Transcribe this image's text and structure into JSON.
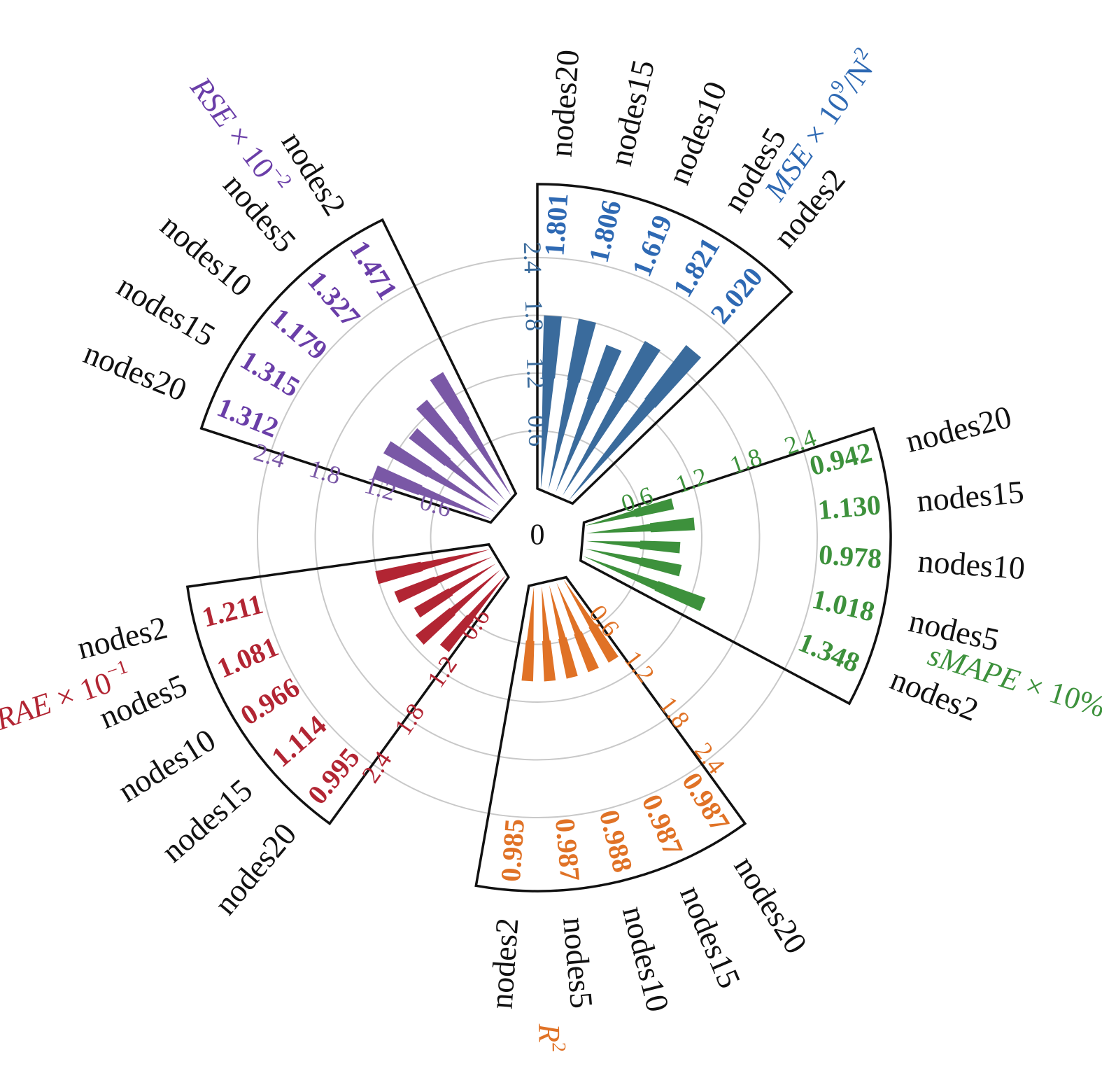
{
  "chart_data": {
    "type": "bar",
    "polar": true,
    "center_label": "0",
    "radial_ticks": [
      "0.6",
      "1.2",
      "1.8",
      "2.4"
    ],
    "radial_tick_values": [
      0.6,
      1.2,
      1.8,
      2.4
    ],
    "rmax": 2.4,
    "grid": true,
    "series": [
      {
        "name": "MSE × 10⁹/N²",
        "title_parts": [
          "MSE",
          " × 10",
          "9",
          "/N",
          "2"
        ],
        "color": "#3a6b9c",
        "label_color": "#2e69b3",
        "categories": [
          "nodes20",
          "nodes15",
          "nodes10",
          "nodes5",
          "nodes2"
        ],
        "values": [
          1.801,
          1.806,
          1.619,
          1.821,
          2.02
        ],
        "value_labels": [
          "1.801",
          "1.806",
          "1.619",
          "1.821",
          "2.020"
        ]
      },
      {
        "name": "sMAPE × 10%",
        "title_parts": [
          "sMAPE",
          " × 10%"
        ],
        "color": "#3d913c",
        "label_color": "#3d913c",
        "categories": [
          "nodes20",
          "nodes15",
          "nodes10",
          "nodes5",
          "nodes2"
        ],
        "values": [
          0.942,
          1.13,
          0.978,
          1.018,
          1.348
        ],
        "value_labels": [
          "0.942",
          "1.130",
          "0.978",
          "1.018",
          "1.348"
        ]
      },
      {
        "name": "R²",
        "title_parts": [
          "R",
          "2"
        ],
        "color": "#e07226",
        "label_color": "#e07226",
        "categories": [
          "nodes20",
          "nodes15",
          "nodes10",
          "nodes5",
          "nodes2"
        ],
        "values": [
          0.987,
          0.987,
          0.988,
          0.987,
          0.985
        ],
        "value_labels": [
          "0.987",
          "0.987",
          "0.988",
          "0.987",
          "0.985"
        ]
      },
      {
        "name": "RAE × 10⁻¹",
        "title_parts": [
          "RAE",
          " × 10",
          "−1"
        ],
        "color": "#b22533",
        "label_color": "#b22533",
        "categories": [
          "nodes20",
          "nodes15",
          "nodes10",
          "nodes5",
          "nodes2"
        ],
        "values": [
          0.995,
          1.114,
          0.966,
          1.081,
          1.211
        ],
        "value_labels": [
          "0.995",
          "1.114",
          "0.966",
          "1.081",
          "1.211"
        ]
      },
      {
        "name": "RSE × 10⁻²",
        "title_parts": [
          "RSE",
          " × 10",
          "−2"
        ],
        "color": "#7a58a6",
        "label_color": "#6a3ea8",
        "categories": [
          "nodes20",
          "nodes15",
          "nodes10",
          "nodes5",
          "nodes2"
        ],
        "values": [
          1.312,
          1.315,
          1.179,
          1.327,
          1.471
        ],
        "value_labels": [
          "1.312",
          "1.315",
          "1.179",
          "1.327",
          "1.471"
        ]
      }
    ]
  }
}
